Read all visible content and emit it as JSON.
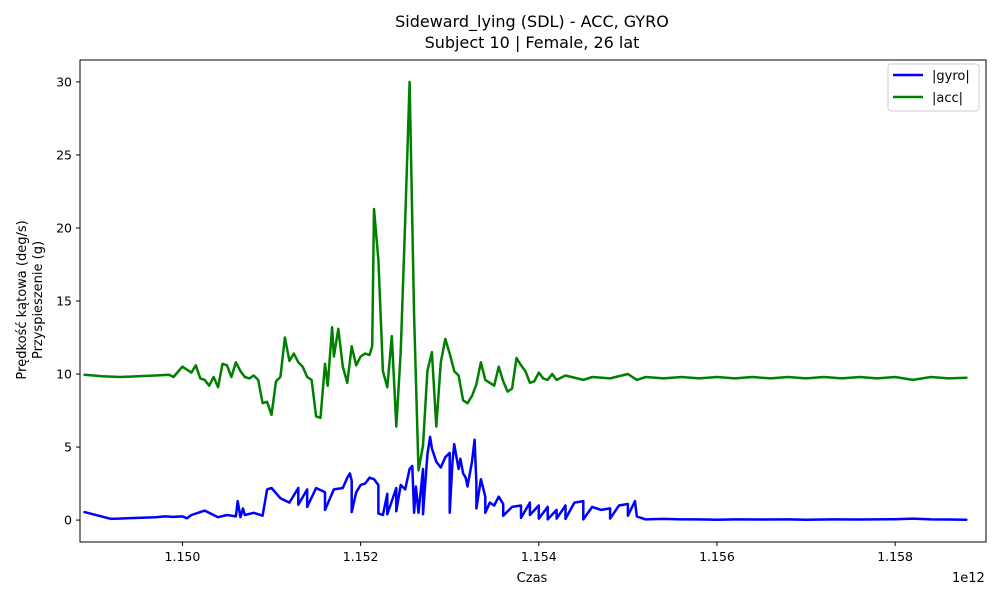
{
  "chart_data": {
    "type": "line",
    "title": [
      "Sideward_lying (SDL) - ACC, GYRO",
      "Subject 10 | Female, 26 lat"
    ],
    "xlabel": "Czas",
    "ylabel": [
      "Prędkość kątowa (deg/s)",
      "Przyspieszenie (g)"
    ],
    "x_offset_label": "1e12",
    "xlim": [
      1.14885,
      1.15902
    ],
    "ylim": [
      -1.5,
      31.5
    ],
    "x_ticks": [
      1.15,
      1.152,
      1.154,
      1.156,
      1.158
    ],
    "x_tick_labels": [
      "1.150",
      "1.152",
      "1.154",
      "1.156",
      "1.158"
    ],
    "y_ticks": [
      0,
      5,
      10,
      15,
      20,
      25,
      30
    ],
    "y_tick_labels": [
      "0",
      "5",
      "10",
      "15",
      "20",
      "25",
      "30"
    ],
    "grid": false,
    "legend_position": "top-right",
    "series": [
      {
        "name": "|gyro|",
        "color": "#0000ff",
        "points": [
          [
            1.1489,
            0.55
          ],
          [
            1.1492,
            0.08
          ],
          [
            1.1495,
            0.15
          ],
          [
            1.1497,
            0.2
          ],
          [
            1.1498,
            0.25
          ],
          [
            1.1499,
            0.22
          ],
          [
            1.15,
            0.25
          ],
          [
            1.15005,
            0.12
          ],
          [
            1.1501,
            0.35
          ],
          [
            1.15025,
            0.65
          ],
          [
            1.1504,
            0.2
          ],
          [
            1.1505,
            0.35
          ],
          [
            1.1506,
            0.25
          ],
          [
            1.15062,
            1.3
          ],
          [
            1.15065,
            0.2
          ],
          [
            1.15068,
            0.8
          ],
          [
            1.1507,
            0.35
          ],
          [
            1.1508,
            0.5
          ],
          [
            1.1509,
            0.3
          ],
          [
            1.15095,
            2.1
          ],
          [
            1.151,
            2.2
          ],
          [
            1.1511,
            1.5
          ],
          [
            1.1512,
            1.2
          ],
          [
            1.1513,
            2.2
          ],
          [
            1.1514,
            2.1
          ],
          [
            1.1515,
            2.2
          ],
          [
            1.1516,
            1.9
          ],
          [
            1.1517,
            2.1
          ],
          [
            1.1518,
            2.2
          ],
          [
            1.15185,
            2.9
          ],
          [
            1.15188,
            3.2
          ],
          [
            1.1519,
            2.7
          ],
          [
            1.15195,
            1.9
          ],
          [
            1.152,
            2.4
          ],
          [
            1.15205,
            2.5
          ],
          [
            1.1521,
            2.9
          ],
          [
            1.15215,
            2.8
          ],
          [
            1.1522,
            2.4
          ],
          [
            1.1523,
            1.8
          ],
          [
            1.1524,
            2.2
          ],
          [
            1.15245,
            2.4
          ],
          [
            1.1525,
            2.1
          ],
          [
            1.15255,
            3.5
          ],
          [
            1.15258,
            3.7
          ],
          [
            1.15262,
            2.3
          ],
          [
            1.15265,
            0.5
          ],
          [
            1.1527,
            3.5
          ],
          [
            1.15275,
            4.5
          ],
          [
            1.15278,
            5.7
          ],
          [
            1.1528,
            4.9
          ],
          [
            1.15285,
            4.0
          ],
          [
            1.1529,
            3.6
          ],
          [
            1.15295,
            4.3
          ],
          [
            1.153,
            4.6
          ],
          [
            1.15303,
            3.9
          ],
          [
            1.15305,
            5.2
          ],
          [
            1.1531,
            3.5
          ],
          [
            1.15312,
            4.2
          ],
          [
            1.15315,
            3.2
          ],
          [
            1.15318,
            2.9
          ],
          [
            1.1532,
            2.3
          ],
          [
            1.15325,
            4.0
          ],
          [
            1.15328,
            5.5
          ],
          [
            1.1533,
            2.5
          ],
          [
            1.15335,
            2.8
          ],
          [
            1.1534,
            1.6
          ],
          [
            1.15345,
            1.2
          ],
          [
            1.1535,
            1.0
          ],
          [
            1.15355,
            1.6
          ],
          [
            1.1536,
            1.1
          ],
          [
            1.1537,
            0.9
          ],
          [
            1.1538,
            1.0
          ],
          [
            1.1539,
            1.2
          ],
          [
            1.154,
            1.0
          ],
          [
            1.1541,
            0.9
          ],
          [
            1.1542,
            0.7
          ],
          [
            1.1543,
            1.0
          ],
          [
            1.1544,
            1.2
          ],
          [
            1.1545,
            1.3
          ],
          [
            1.1546,
            0.9
          ],
          [
            1.1547,
            0.7
          ],
          [
            1.1548,
            0.8
          ],
          [
            1.1549,
            1.0
          ],
          [
            1.155,
            1.1
          ],
          [
            1.15508,
            1.3
          ],
          [
            1.1513,
            1.05
          ],
          [
            1.1514,
            0.9
          ],
          [
            1.1516,
            0.7
          ],
          [
            1.1519,
            0.55
          ],
          [
            1.1522,
            0.45
          ],
          [
            1.15225,
            0.35
          ],
          [
            1.1523,
            0.4
          ],
          [
            1.1524,
            0.6
          ],
          [
            1.1526,
            0.5
          ],
          [
            1.1527,
            0.4
          ],
          [
            1.153,
            0.5
          ],
          [
            1.1533,
            0.8
          ],
          [
            1.1534,
            0.5
          ],
          [
            1.1536,
            0.3
          ],
          [
            1.1538,
            0.15
          ],
          [
            1.1539,
            0.35
          ],
          [
            1.154,
            0.1
          ],
          [
            1.1541,
            0.05
          ],
          [
            1.1542,
            0.1
          ],
          [
            1.1543,
            0.08
          ],
          [
            1.1545,
            0.05
          ],
          [
            1.1548,
            0.1
          ],
          [
            1.155,
            0.3
          ],
          [
            1.1551,
            0.25
          ],
          [
            1.1552,
            0.05
          ],
          [
            1.1554,
            0.08
          ],
          [
            1.1556,
            0.05
          ],
          [
            1.1558,
            0.05
          ],
          [
            1.156,
            0.03
          ],
          [
            1.1562,
            0.05
          ],
          [
            1.1565,
            0.04
          ],
          [
            1.1568,
            0.05
          ],
          [
            1.157,
            0.03
          ],
          [
            1.1573,
            0.05
          ],
          [
            1.1576,
            0.04
          ],
          [
            1.158,
            0.06
          ],
          [
            1.1582,
            0.1
          ],
          [
            1.1584,
            0.05
          ],
          [
            1.1586,
            0.04
          ],
          [
            1.1588,
            0.03
          ]
        ]
      },
      {
        "name": "|acc|",
        "color": "#008000",
        "points": [
          [
            1.1489,
            9.95
          ],
          [
            1.1491,
            9.85
          ],
          [
            1.1493,
            9.8
          ],
          [
            1.1495,
            9.85
          ],
          [
            1.1497,
            9.9
          ],
          [
            1.14985,
            9.95
          ],
          [
            1.1499,
            9.8
          ],
          [
            1.15,
            10.5
          ],
          [
            1.1501,
            10.1
          ],
          [
            1.15015,
            10.6
          ],
          [
            1.1502,
            9.7
          ],
          [
            1.15025,
            9.6
          ],
          [
            1.1503,
            9.2
          ],
          [
            1.15035,
            9.8
          ],
          [
            1.1504,
            9.1
          ],
          [
            1.15045,
            10.7
          ],
          [
            1.1505,
            10.6
          ],
          [
            1.15055,
            9.8
          ],
          [
            1.1506,
            10.8
          ],
          [
            1.15065,
            10.2
          ],
          [
            1.1507,
            9.8
          ],
          [
            1.15075,
            9.7
          ],
          [
            1.1508,
            9.9
          ],
          [
            1.15085,
            9.6
          ],
          [
            1.1509,
            8.0
          ],
          [
            1.15095,
            8.1
          ],
          [
            1.151,
            7.2
          ],
          [
            1.15105,
            9.5
          ],
          [
            1.1511,
            9.8
          ],
          [
            1.15115,
            12.5
          ],
          [
            1.1512,
            10.9
          ],
          [
            1.15125,
            11.4
          ],
          [
            1.1513,
            10.8
          ],
          [
            1.15135,
            10.5
          ],
          [
            1.1514,
            9.8
          ],
          [
            1.15145,
            9.6
          ],
          [
            1.1515,
            7.1
          ],
          [
            1.15155,
            7.0
          ],
          [
            1.1516,
            10.7
          ],
          [
            1.15163,
            9.2
          ],
          [
            1.15168,
            13.2
          ],
          [
            1.1517,
            11.2
          ],
          [
            1.15175,
            13.1
          ],
          [
            1.1518,
            10.5
          ],
          [
            1.15185,
            9.4
          ],
          [
            1.1519,
            11.9
          ],
          [
            1.15195,
            10.6
          ],
          [
            1.152,
            11.2
          ],
          [
            1.15205,
            11.4
          ],
          [
            1.1521,
            11.3
          ],
          [
            1.15213,
            11.9
          ],
          [
            1.15215,
            21.3
          ],
          [
            1.1522,
            17.8
          ],
          [
            1.15225,
            10.2
          ],
          [
            1.1523,
            9.1
          ],
          [
            1.15235,
            12.6
          ],
          [
            1.1524,
            6.4
          ],
          [
            1.15245,
            11.5
          ],
          [
            1.1525,
            20.5
          ],
          [
            1.15255,
            30.0
          ],
          [
            1.1526,
            14.0
          ],
          [
            1.15265,
            3.4
          ],
          [
            1.1527,
            5.1
          ],
          [
            1.15275,
            10.2
          ],
          [
            1.1528,
            11.5
          ],
          [
            1.15285,
            6.4
          ],
          [
            1.1529,
            10.8
          ],
          [
            1.15295,
            12.4
          ],
          [
            1.153,
            11.4
          ],
          [
            1.15305,
            10.2
          ],
          [
            1.1531,
            9.9
          ],
          [
            1.15315,
            8.2
          ],
          [
            1.1532,
            8.0
          ],
          [
            1.15325,
            8.5
          ],
          [
            1.1533,
            9.3
          ],
          [
            1.15335,
            10.8
          ],
          [
            1.1534,
            9.6
          ],
          [
            1.15345,
            9.4
          ],
          [
            1.1535,
            9.2
          ],
          [
            1.15355,
            10.5
          ],
          [
            1.1536,
            9.5
          ],
          [
            1.15365,
            8.8
          ],
          [
            1.1537,
            9.0
          ],
          [
            1.15375,
            11.1
          ],
          [
            1.1538,
            10.6
          ],
          [
            1.15385,
            10.2
          ],
          [
            1.1539,
            9.4
          ],
          [
            1.15395,
            9.5
          ],
          [
            1.154,
            10.1
          ],
          [
            1.15405,
            9.7
          ],
          [
            1.1541,
            9.6
          ],
          [
            1.15415,
            10.0
          ],
          [
            1.1542,
            9.6
          ],
          [
            1.1543,
            9.9
          ],
          [
            1.1545,
            9.6
          ],
          [
            1.1546,
            9.8
          ],
          [
            1.1548,
            9.7
          ],
          [
            1.155,
            10.0
          ],
          [
            1.1551,
            9.6
          ],
          [
            1.1552,
            9.8
          ],
          [
            1.1554,
            9.7
          ],
          [
            1.1556,
            9.8
          ],
          [
            1.1558,
            9.7
          ],
          [
            1.156,
            9.8
          ],
          [
            1.1562,
            9.7
          ],
          [
            1.1564,
            9.8
          ],
          [
            1.1566,
            9.7
          ],
          [
            1.1568,
            9.8
          ],
          [
            1.157,
            9.7
          ],
          [
            1.1572,
            9.8
          ],
          [
            1.1574,
            9.7
          ],
          [
            1.1576,
            9.8
          ],
          [
            1.1578,
            9.7
          ],
          [
            1.158,
            9.8
          ],
          [
            1.1582,
            9.6
          ],
          [
            1.1584,
            9.8
          ],
          [
            1.1586,
            9.7
          ],
          [
            1.1588,
            9.75
          ]
        ]
      }
    ]
  }
}
